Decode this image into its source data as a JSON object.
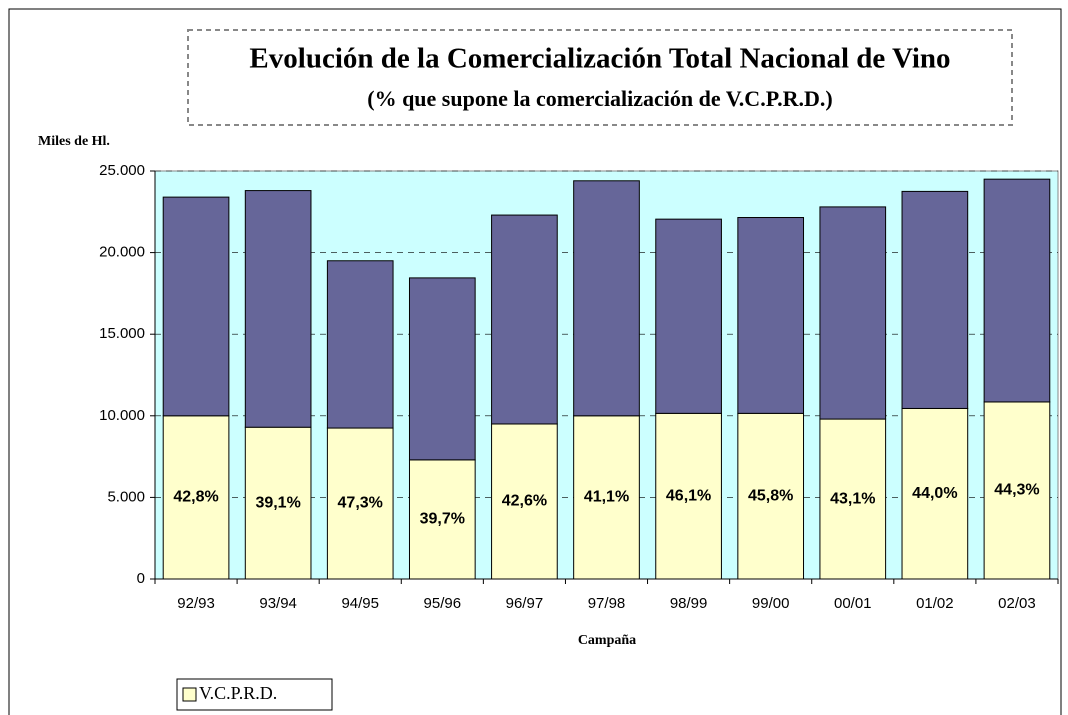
{
  "chart_data": {
    "type": "stacked_bar",
    "title": "Evolución de la Comercialización Total Nacional de Vino",
    "subtitle": "(% que supone la comercialización de V.C.P.R.D.)",
    "y_label": "Miles de Hl.",
    "x_label": "Campaña",
    "categories": [
      "92/93",
      "93/94",
      "94/95",
      "95/96",
      "96/97",
      "97/98",
      "98/99",
      "99/00",
      "00/01",
      "01/02",
      "02/03"
    ],
    "series": [
      {
        "name": "V.C.P.R.D.",
        "color": "#ffffcc",
        "values": [
          10000,
          9300,
          9250,
          7300,
          9500,
          10000,
          10150,
          10150,
          9800,
          10450,
          10850
        ]
      },
      {
        "color": "#666699",
        "values": [
          13400,
          14500,
          10250,
          11150,
          12800,
          14400,
          11900,
          12000,
          13000,
          13300,
          13650
        ]
      }
    ],
    "annotations": [
      "42,8%",
      "39,1%",
      "47,3%",
      "39,7%",
      "42,6%",
      "41,1%",
      "46,1%",
      "45,8%",
      "43,1%",
      "44,0%",
      "44,3%"
    ],
    "ylim": [
      0,
      25000
    ],
    "yticks": [
      0,
      {
        "value": 5000,
        "label": "5.000"
      },
      {
        "value": 10000,
        "label": "10.000"
      },
      {
        "value": 15000,
        "label": "15.000"
      },
      {
        "value": 20000,
        "label": "20.000"
      },
      {
        "value": 25000,
        "label": "25.000"
      }
    ],
    "grid": true,
    "plot_background": "#ccffff",
    "legend": "bottom-left"
  }
}
